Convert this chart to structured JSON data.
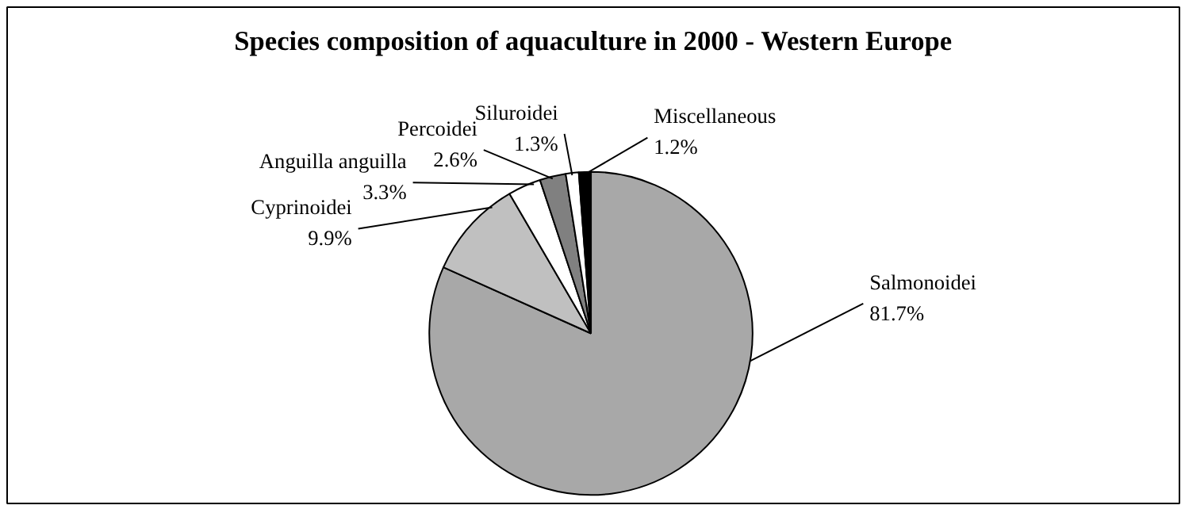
{
  "chart_data": {
    "type": "pie",
    "title": "Species composition of aquaculture in 2000 - Western Europe",
    "categories": [
      "Salmonoidei",
      "Cyprinoidei",
      "Anguilla anguilla",
      "Percoidei",
      "Siluroidei",
      "Miscellaneous"
    ],
    "values": [
      81.7,
      9.9,
      3.3,
      2.6,
      1.3,
      1.2
    ],
    "colors": [
      "#a8a8a8",
      "#c0c0c0",
      "#ffffff",
      "#808080",
      "#ffffff",
      "#000000"
    ],
    "value_labels": [
      "81.7%",
      "9.9%",
      "3.3%",
      "2.6%",
      "1.3%",
      "1.2%"
    ]
  }
}
